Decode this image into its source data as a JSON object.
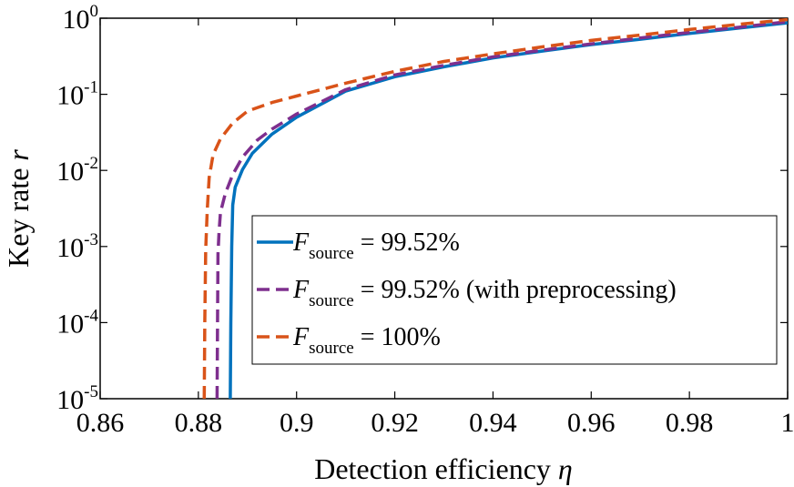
{
  "chart_data": {
    "type": "line",
    "title": "",
    "xlabel_prefix": "Detection efficiency ",
    "xlabel_symbol": "η",
    "ylabel_prefix": "Key rate ",
    "ylabel_symbol": "r",
    "xlim": [
      0.86,
      1.0
    ],
    "ylim": [
      1e-05,
      1
    ],
    "yscale": "log",
    "grid": false,
    "legend_position": "lower-right",
    "x_ticks": [
      {
        "value": 0.86,
        "label": "0.86"
      },
      {
        "value": 0.88,
        "label": "0.88"
      },
      {
        "value": 0.9,
        "label": "0.9"
      },
      {
        "value": 0.92,
        "label": "0.92"
      },
      {
        "value": 0.94,
        "label": "0.94"
      },
      {
        "value": 0.96,
        "label": "0.96"
      },
      {
        "value": 0.98,
        "label": "0.98"
      },
      {
        "value": 1.0,
        "label": "1"
      }
    ],
    "y_ticks": [
      {
        "value": 1,
        "base": "10",
        "exp": "0"
      },
      {
        "value": 0.1,
        "base": "10",
        "exp": "-1"
      },
      {
        "value": 0.01,
        "base": "10",
        "exp": "-2"
      },
      {
        "value": 0.001,
        "base": "10",
        "exp": "-3"
      },
      {
        "value": 0.0001,
        "base": "10",
        "exp": "-4"
      },
      {
        "value": 1e-05,
        "base": "10",
        "exp": "-5"
      }
    ],
    "series": [
      {
        "name_main": "F",
        "name_sub": "source",
        "name_rest": " = 99.52%",
        "color": "#0072BD",
        "dash": "solid",
        "x": [
          0.8865,
          0.8866,
          0.8868,
          0.887,
          0.8875,
          0.889,
          0.891,
          0.895,
          0.9,
          0.91,
          0.92,
          0.93,
          0.94,
          0.95,
          0.96,
          0.97,
          0.98,
          0.99,
          1.0
        ],
        "y": [
          1e-05,
          0.0001,
          0.001,
          0.0035,
          0.006,
          0.0103,
          0.0168,
          0.03,
          0.05,
          0.11,
          0.17,
          0.23,
          0.3,
          0.37,
          0.45,
          0.53,
          0.63,
          0.74,
          0.87
        ]
      },
      {
        "name_main": "F",
        "name_sub": "source",
        "name_rest": " = 99.52% (with preprocessing)",
        "color": "#7E2F8E",
        "dash": "dashed",
        "x": [
          0.8838,
          0.8839,
          0.884,
          0.8842,
          0.8845,
          0.8855,
          0.887,
          0.889,
          0.892,
          0.895,
          0.9,
          0.91,
          0.92,
          0.93,
          0.94,
          0.95,
          0.96,
          0.97,
          0.98,
          0.99,
          1.0
        ],
        "y": [
          1e-05,
          0.0001,
          0.0008,
          0.0015,
          0.0028,
          0.005,
          0.0088,
          0.015,
          0.025,
          0.035,
          0.055,
          0.115,
          0.18,
          0.24,
          0.31,
          0.38,
          0.46,
          0.55,
          0.65,
          0.76,
          0.9
        ]
      },
      {
        "name_main": "F",
        "name_sub": "source",
        "name_rest": " = 100%",
        "color": "#D95319",
        "dash": "dashed",
        "x": [
          0.8812,
          0.8813,
          0.8815,
          0.8818,
          0.8822,
          0.883,
          0.8845,
          0.887,
          0.89,
          0.895,
          0.9,
          0.91,
          0.92,
          0.93,
          0.94,
          0.95,
          0.96,
          0.97,
          0.98,
          0.99,
          1.0
        ],
        "y": [
          1e-05,
          0.0001,
          0.0009,
          0.003,
          0.008,
          0.016,
          0.026,
          0.042,
          0.06,
          0.078,
          0.095,
          0.14,
          0.2,
          0.27,
          0.34,
          0.42,
          0.51,
          0.6,
          0.71,
          0.83,
          0.96
        ]
      }
    ]
  }
}
